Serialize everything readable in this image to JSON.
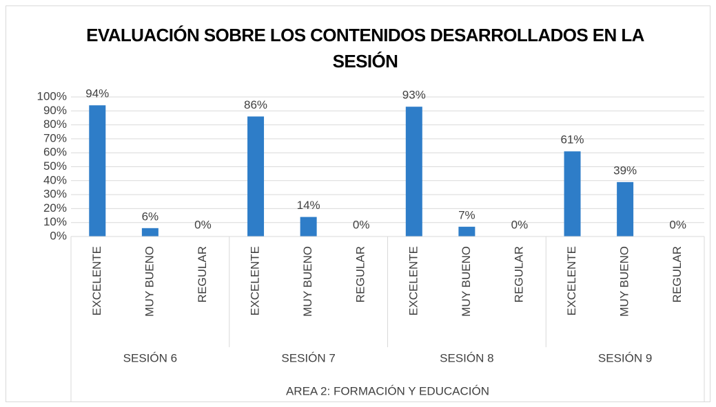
{
  "chart_data": {
    "type": "bar",
    "title": "EVALUACIÓN SOBRE LOS CONTENIDOS DESARROLLADOS EN LA SESIÓN",
    "categories": [
      "EXCELENTE",
      "MUY BUENO",
      "REGULAR",
      "EXCELENTE",
      "MUY BUENO",
      "REGULAR",
      "EXCELENTE",
      "MUY BUENO",
      "REGULAR",
      "EXCELENTE",
      "MUY BUENO",
      "REGULAR"
    ],
    "category_groups": [
      "SESIÓN 6",
      "SESIÓN 7",
      "SESIÓN 8",
      "SESIÓN 9"
    ],
    "x_label": "AREA 2: FORMACIÓN Y EDUCACIÓN",
    "values": [
      94,
      6,
      0,
      86,
      14,
      0,
      93,
      7,
      0,
      61,
      39,
      0
    ],
    "value_labels": [
      "94%",
      "6%",
      "0%",
      "86%",
      "14%",
      "0%",
      "93%",
      "7%",
      "0%",
      "61%",
      "39%",
      "0%"
    ],
    "color": "#2e7dc8",
    "ylim": [
      0,
      100
    ],
    "yticks": [
      {
        "value": 0,
        "label": "0%"
      },
      {
        "value": 10,
        "label": "10%"
      },
      {
        "value": 20,
        "label": "20%"
      },
      {
        "value": 30,
        "label": "30%"
      },
      {
        "value": 40,
        "label": "40%"
      },
      {
        "value": 50,
        "label": "50%"
      },
      {
        "value": 60,
        "label": "60%"
      },
      {
        "value": 70,
        "label": "70%"
      },
      {
        "value": 80,
        "label": "80%"
      },
      {
        "value": 90,
        "label": "90%"
      },
      {
        "value": 100,
        "label": "100%"
      }
    ],
    "grid": true
  }
}
